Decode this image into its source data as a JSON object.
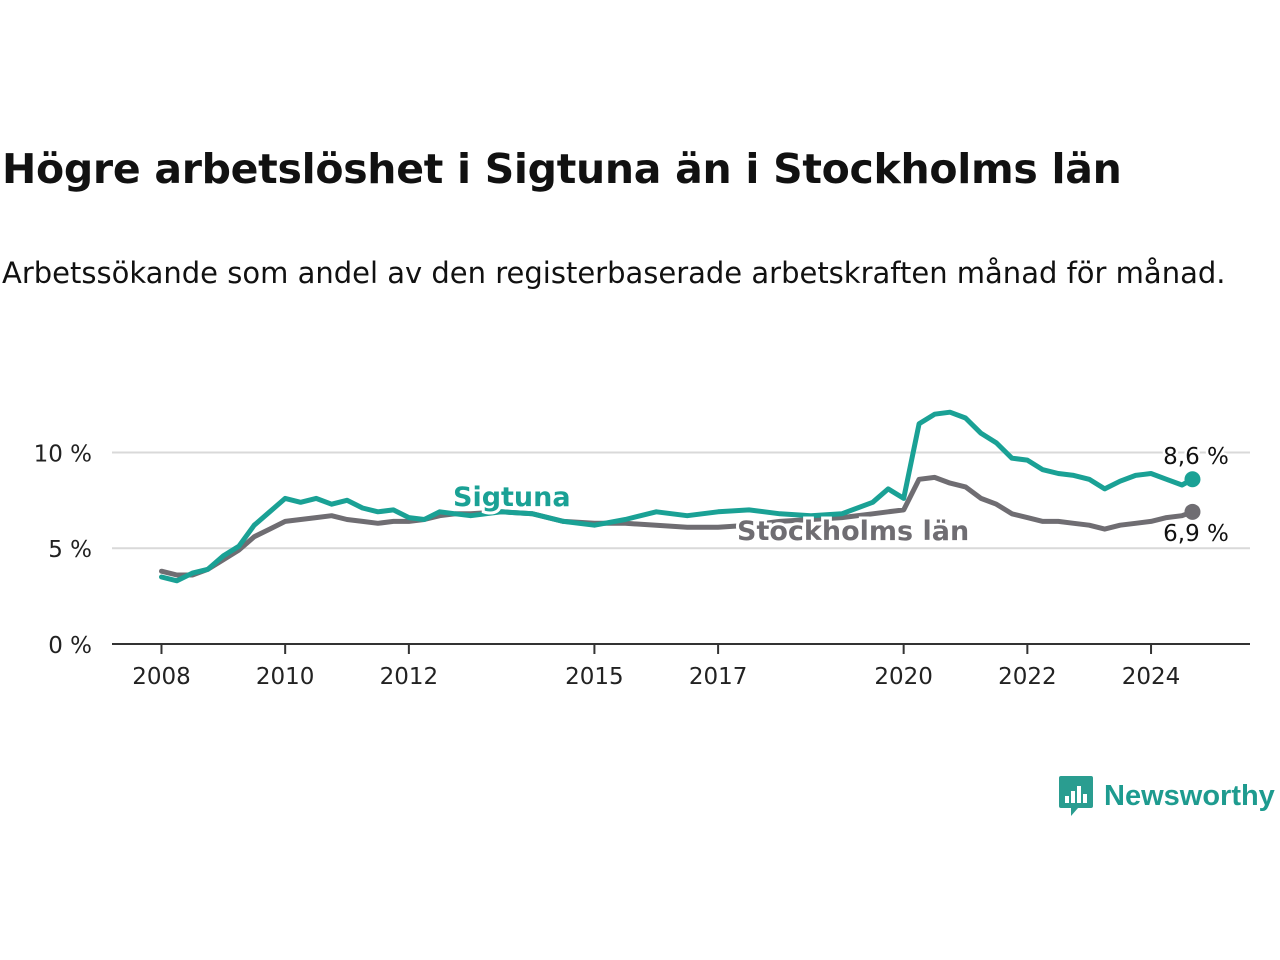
{
  "title": "Högre arbetslöshet i Sigtuna än i Stockholms län",
  "subtitle": "Arbetssökande som andel av den registerbaserade arbetskraften månad för månad.",
  "brand": {
    "name": "Newsworthy",
    "logo_icon": "newsworthy-logo-icon",
    "color": "#1e9b8f"
  },
  "chart_data": {
    "type": "line",
    "title": "Högre arbetslöshet i Sigtuna än i Stockholms län",
    "subtitle": "Arbetssökande som andel av den registerbaserade arbetskraften månad för månad.",
    "xlabel": "",
    "ylabel": "",
    "x_ticks": [
      {
        "value": 2008.0,
        "label": "2008"
      },
      {
        "value": 2010.0,
        "label": "2010"
      },
      {
        "value": 2012.0,
        "label": "2012"
      },
      {
        "value": 2015.0,
        "label": "2015"
      },
      {
        "value": 2017.0,
        "label": "2017"
      },
      {
        "value": 2020.0,
        "label": "2020"
      },
      {
        "value": 2022.0,
        "label": "2022"
      },
      {
        "value": 2024.0,
        "label": "2024"
      }
    ],
    "y_ticks": [
      {
        "value": 0,
        "label": "0 %"
      },
      {
        "value": 5,
        "label": "5 %"
      },
      {
        "value": 10,
        "label": "10 %"
      }
    ],
    "xlim": [
      2007.2,
      2025.6
    ],
    "ylim": [
      0,
      13
    ],
    "grid": true,
    "series": [
      {
        "name": "Sigtuna",
        "label": "Sigtuna",
        "color": "#1aa195",
        "end_label": "8,6 %",
        "x": [
          2008.0,
          2008.25,
          2008.5,
          2008.75,
          2009.0,
          2009.25,
          2009.5,
          2009.75,
          2010.0,
          2010.25,
          2010.5,
          2010.75,
          2011.0,
          2011.25,
          2011.5,
          2011.75,
          2012.0,
          2012.25,
          2012.5,
          2012.75,
          2013.0,
          2013.5,
          2014.0,
          2014.5,
          2015.0,
          2015.5,
          2016.0,
          2016.5,
          2017.0,
          2017.5,
          2018.0,
          2018.5,
          2019.0,
          2019.5,
          2019.75,
          2020.0,
          2020.25,
          2020.5,
          2020.75,
          2021.0,
          2021.25,
          2021.5,
          2021.75,
          2022.0,
          2022.25,
          2022.5,
          2022.75,
          2023.0,
          2023.25,
          2023.5,
          2023.75,
          2024.0,
          2024.25,
          2024.5,
          2024.67
        ],
        "values": [
          3.5,
          3.3,
          3.7,
          3.9,
          4.6,
          5.1,
          6.2,
          6.9,
          7.6,
          7.4,
          7.6,
          7.3,
          7.5,
          7.1,
          6.9,
          7.0,
          6.6,
          6.5,
          6.9,
          6.8,
          6.7,
          6.9,
          6.8,
          6.4,
          6.2,
          6.5,
          6.9,
          6.7,
          6.9,
          7.0,
          6.8,
          6.7,
          6.8,
          7.4,
          8.1,
          7.6,
          11.5,
          12.0,
          12.1,
          11.8,
          11.0,
          10.5,
          9.7,
          9.6,
          9.1,
          8.9,
          8.8,
          8.6,
          8.1,
          8.5,
          8.8,
          8.9,
          8.6,
          8.3,
          8.6
        ]
      },
      {
        "name": "Stockholms län",
        "label": "Stockholms län",
        "color": "#6f6d72",
        "end_label": "6,9 %",
        "x": [
          2008.0,
          2008.25,
          2008.5,
          2008.75,
          2009.0,
          2009.25,
          2009.5,
          2009.75,
          2010.0,
          2010.25,
          2010.5,
          2010.75,
          2011.0,
          2011.25,
          2011.5,
          2011.75,
          2012.0,
          2012.25,
          2012.5,
          2012.75,
          2013.0,
          2013.5,
          2014.0,
          2014.5,
          2015.0,
          2015.5,
          2016.0,
          2016.5,
          2017.0,
          2017.5,
          2018.0,
          2018.5,
          2019.0,
          2019.5,
          2019.75,
          2020.0,
          2020.25,
          2020.5,
          2020.75,
          2021.0,
          2021.25,
          2021.5,
          2021.75,
          2022.0,
          2022.25,
          2022.5,
          2022.75,
          2023.0,
          2023.25,
          2023.5,
          2023.75,
          2024.0,
          2024.25,
          2024.5,
          2024.67
        ],
        "values": [
          3.8,
          3.6,
          3.6,
          3.9,
          4.4,
          4.9,
          5.6,
          6.0,
          6.4,
          6.5,
          6.6,
          6.7,
          6.5,
          6.4,
          6.3,
          6.4,
          6.4,
          6.5,
          6.7,
          6.8,
          6.8,
          6.9,
          6.8,
          6.4,
          6.3,
          6.3,
          6.2,
          6.1,
          6.1,
          6.2,
          6.4,
          6.5,
          6.6,
          6.8,
          6.9,
          7.0,
          8.6,
          8.7,
          8.4,
          8.2,
          7.6,
          7.3,
          6.8,
          6.6,
          6.4,
          6.4,
          6.3,
          6.2,
          6.0,
          6.2,
          6.3,
          6.4,
          6.6,
          6.7,
          6.9
        ]
      }
    ]
  }
}
